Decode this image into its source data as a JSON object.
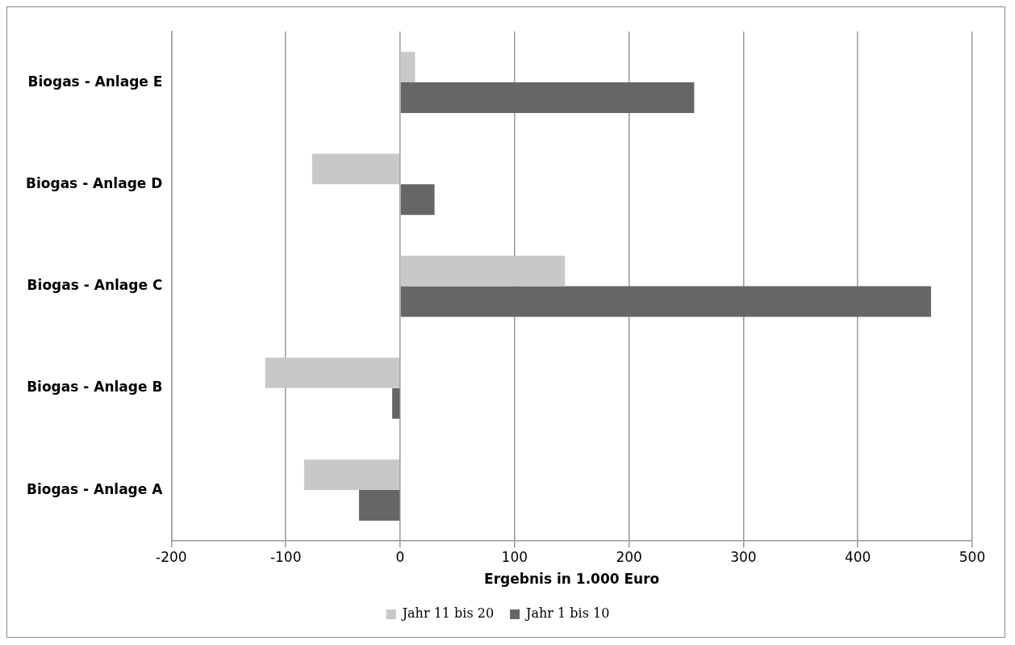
{
  "chart_data": {
    "type": "bar",
    "orientation": "horizontal",
    "xlabel": "Ergebnis in 1.000 Euro",
    "categories": [
      "Biogas - Anlage E",
      "Biogas - Anlage D",
      "Biogas - Anlage C",
      "Biogas - Anlage B",
      "Biogas - Anlage A"
    ],
    "series": [
      {
        "name": "Jahr 11 bis 20",
        "color": "#c8c8c8",
        "values": [
          13,
          -77,
          144,
          -118,
          -84
        ]
      },
      {
        "name": "Jahr 1 bis 10",
        "color": "#666666",
        "values": [
          257,
          30,
          464,
          -7,
          -36
        ]
      }
    ],
    "xlim": [
      -200,
      500
    ],
    "xticks": [
      -200,
      -100,
      0,
      100,
      200,
      300,
      400,
      500
    ],
    "grid": "x",
    "legend": "bottom"
  }
}
